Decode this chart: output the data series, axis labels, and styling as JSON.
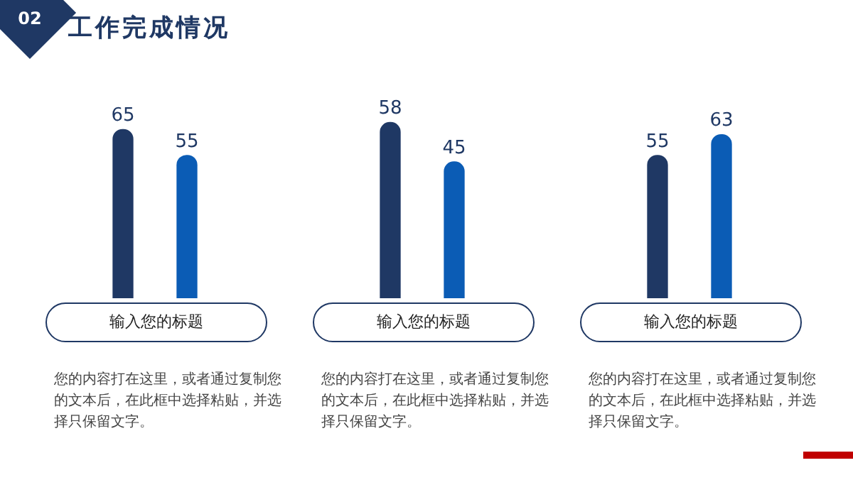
{
  "chart_data": [
    {
      "type": "bar",
      "title": "工作完成情况",
      "categories": [
        null,
        null
      ],
      "values": [
        65,
        55
      ],
      "colors": [
        "#1f3864",
        "#0b5cb5"
      ],
      "data_labels": true,
      "xlabel": "输入您的标题",
      "annotations": [
        "02",
        "您的内容打在这里，或者通过复制您的文本后，在此框中选择粘贴，并选择只保留文字。"
      ]
    },
    {
      "type": "bar",
      "categories": [
        null,
        null
      ],
      "values": [
        58,
        45
      ],
      "colors": [
        "#1f3864",
        "#0b5cb5"
      ],
      "data_labels": true,
      "xlabel": "输入您的标题",
      "annotations": [
        "您的内容打在这里，或者通过复制您的文本后，在此框中选择粘贴，并选择只保留文字。"
      ]
    },
    {
      "type": "bar",
      "categories": [
        null,
        null
      ],
      "values": [
        55,
        63
      ],
      "colors": [
        "#1f3864",
        "#0b5cb5"
      ],
      "data_labels": true,
      "xlabel": "输入您的标题",
      "annotations": [
        "您的内容打在这里，或者通过复制您的文本后，在此框中选择粘贴，并选择只保留文字。"
      ]
    }
  ]
}
